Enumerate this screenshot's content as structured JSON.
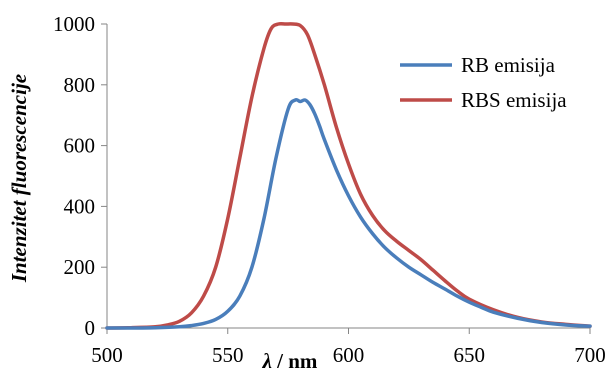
{
  "chart_data": {
    "type": "line",
    "title": "",
    "xlabel_symbol": "λ",
    "xlabel_unit": " / nm",
    "ylabel": "Intenzitet fluorescencije",
    "xlim": [
      500,
      700
    ],
    "ylim": [
      0,
      1000
    ],
    "xticks": [
      500,
      550,
      600,
      650,
      700
    ],
    "yticks": [
      0,
      200,
      400,
      600,
      800,
      1000
    ],
    "grid": false,
    "legend_position": "top-right",
    "series": [
      {
        "name": "RB emisija",
        "color": "#4a7ebb",
        "x": [
          500,
          510,
          520,
          530,
          535,
          540,
          545,
          550,
          555,
          560,
          565,
          570,
          575,
          578,
          580,
          582,
          584,
          586,
          588,
          590,
          595,
          600,
          605,
          610,
          615,
          620,
          625,
          630,
          635,
          640,
          645,
          650,
          655,
          660,
          670,
          680,
          690,
          700
        ],
        "y": [
          0,
          0,
          1,
          4,
          8,
          15,
          28,
          55,
          105,
          200,
          360,
          560,
          720,
          750,
          745,
          750,
          735,
          705,
          665,
          620,
          520,
          435,
          365,
          310,
          265,
          230,
          200,
          175,
          150,
          128,
          105,
          85,
          68,
          52,
          32,
          18,
          10,
          6
        ]
      },
      {
        "name": "RBS emisija",
        "color": "#be4b48",
        "x": [
          500,
          510,
          520,
          525,
          530,
          535,
          540,
          545,
          550,
          555,
          560,
          565,
          568,
          571,
          574,
          577,
          580,
          583,
          586,
          590,
          595,
          600,
          605,
          610,
          615,
          620,
          625,
          630,
          635,
          640,
          645,
          650,
          660,
          670,
          680,
          690,
          700
        ],
        "y": [
          0,
          1,
          4,
          10,
          22,
          50,
          105,
          200,
          360,
          560,
          760,
          920,
          985,
          1000,
          1000,
          1000,
          995,
          965,
          900,
          800,
          660,
          540,
          440,
          370,
          320,
          285,
          255,
          225,
          190,
          155,
          122,
          95,
          60,
          35,
          20,
          12,
          6
        ]
      }
    ]
  }
}
